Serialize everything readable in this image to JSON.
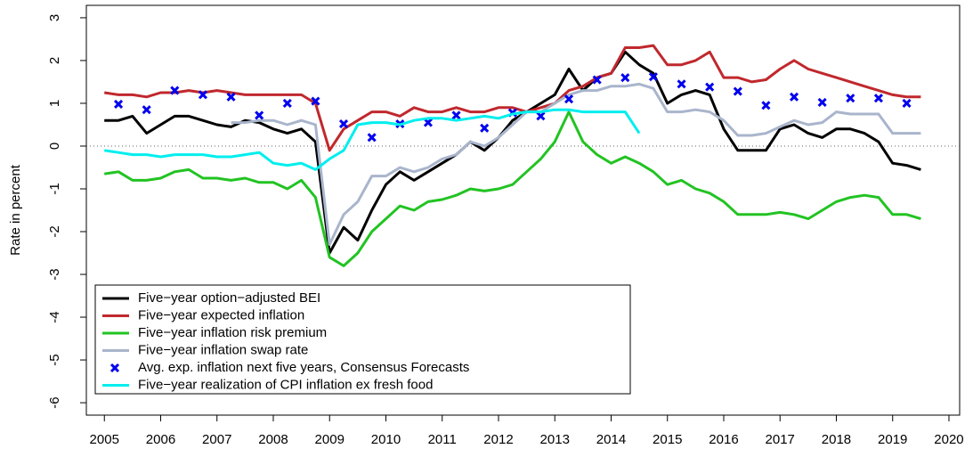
{
  "chart_data": {
    "type": "line",
    "y_label": "Rate in percent",
    "xlim": [
      2004.68,
      2020.19
    ],
    "ylim": [
      -6.29,
      3.29
    ],
    "xticks": [
      2005,
      2006,
      2007,
      2008,
      2009,
      2010,
      2011,
      2012,
      2013,
      2014,
      2015,
      2016,
      2017,
      2018,
      2019,
      2020
    ],
    "yticks": [
      -6,
      -5,
      -4,
      -3,
      -2,
      -1,
      0,
      1,
      2,
      3
    ],
    "reference_line": 0,
    "x": [
      2005,
      2005.25,
      2005.5,
      2005.75,
      2006,
      2006.25,
      2006.5,
      2006.75,
      2007,
      2007.25,
      2007.5,
      2007.75,
      2008,
      2008.25,
      2008.5,
      2008.75,
      2009,
      2009.25,
      2009.5,
      2009.75,
      2010,
      2010.25,
      2010.5,
      2010.75,
      2011,
      2011.25,
      2011.5,
      2011.75,
      2012,
      2012.25,
      2012.5,
      2012.75,
      2013,
      2013.25,
      2013.5,
      2013.75,
      2014,
      2014.25,
      2014.5,
      2014.75,
      2015,
      2015.25,
      2015.5,
      2015.75,
      2016,
      2016.25,
      2016.5,
      2016.75,
      2017,
      2017.25,
      2017.5,
      2017.75,
      2018,
      2018.25,
      2018.5,
      2018.75,
      2019,
      2019.25,
      2019.5
    ],
    "series": [
      {
        "name": "Five−year option−adjusted BEI",
        "color": "#000000",
        "values": [
          0.6,
          0.6,
          0.7,
          0.3,
          0.5,
          0.7,
          0.7,
          0.6,
          0.5,
          0.45,
          0.6,
          0.55,
          0.4,
          0.3,
          0.4,
          0.1,
          -2.5,
          -1.9,
          -2.2,
          -1.5,
          -0.9,
          -0.6,
          -0.8,
          -0.6,
          -0.4,
          -0.2,
          0.1,
          -0.1,
          0.2,
          0.6,
          0.8,
          1.0,
          1.2,
          1.8,
          1.3,
          1.6,
          1.7,
          2.2,
          1.9,
          1.7,
          1.0,
          1.2,
          1.3,
          1.2,
          0.4,
          -0.1,
          -0.1,
          -0.1,
          0.4,
          0.5,
          0.3,
          0.2,
          0.4,
          0.4,
          0.3,
          0.1,
          -0.4,
          -0.45,
          -0.55
        ]
      },
      {
        "name": "Five−year expected inflation",
        "color": "#c0282d",
        "values": [
          1.25,
          1.2,
          1.2,
          1.15,
          1.25,
          1.25,
          1.3,
          1.25,
          1.3,
          1.25,
          1.2,
          1.2,
          1.2,
          1.2,
          1.2,
          1.0,
          -0.1,
          0.4,
          0.6,
          0.8,
          0.8,
          0.7,
          0.9,
          0.8,
          0.8,
          0.9,
          0.8,
          0.8,
          0.9,
          0.9,
          0.8,
          0.9,
          1.0,
          1.3,
          1.4,
          1.6,
          1.7,
          2.3,
          2.3,
          2.35,
          1.9,
          1.9,
          2.0,
          2.2,
          1.6,
          1.6,
          1.5,
          1.55,
          1.8,
          2.0,
          1.8,
          1.7,
          1.6,
          1.5,
          1.4,
          1.3,
          1.2,
          1.15,
          1.15
        ]
      },
      {
        "name": "Five−year inflation risk premium",
        "color": "#22c322",
        "values": [
          -0.65,
          -0.6,
          -0.8,
          -0.8,
          -0.75,
          -0.6,
          -0.55,
          -0.75,
          -0.75,
          -0.8,
          -0.75,
          -0.85,
          -0.85,
          -1.0,
          -0.8,
          -1.2,
          -2.6,
          -2.8,
          -2.5,
          -2.0,
          -1.7,
          -1.4,
          -1.5,
          -1.3,
          -1.25,
          -1.15,
          -1.0,
          -1.05,
          -1.0,
          -0.9,
          -0.6,
          -0.3,
          0.1,
          0.8,
          0.1,
          -0.2,
          -0.4,
          -0.25,
          -0.4,
          -0.6,
          -0.9,
          -0.8,
          -1.0,
          -1.1,
          -1.3,
          -1.6,
          -1.6,
          -1.6,
          -1.55,
          -1.6,
          -1.7,
          -1.5,
          -1.3,
          -1.2,
          -1.15,
          -1.2,
          -1.6,
          -1.6,
          -1.7
        ]
      },
      {
        "name": "Five−year inflation swap rate",
        "color": "#a9b5cc",
        "x": [
          2007.25,
          2007.5,
          2007.75,
          2008,
          2008.25,
          2008.5,
          2008.75,
          2009,
          2009.25,
          2009.5,
          2009.75,
          2010,
          2010.25,
          2010.5,
          2010.75,
          2011,
          2011.25,
          2011.5,
          2011.75,
          2012,
          2012.25,
          2012.5,
          2012.75,
          2013,
          2013.25,
          2013.5,
          2013.75,
          2014,
          2014.25,
          2014.5,
          2014.75,
          2015,
          2015.25,
          2015.5,
          2015.75,
          2016,
          2016.25,
          2016.5,
          2016.75,
          2017,
          2017.25,
          2017.5,
          2017.75,
          2018,
          2018.25,
          2018.5,
          2018.75,
          2019,
          2019.25,
          2019.5
        ],
        "values": [
          0.55,
          0.55,
          0.6,
          0.6,
          0.5,
          0.6,
          0.5,
          -2.3,
          -1.6,
          -1.3,
          -0.7,
          -0.7,
          -0.5,
          -0.6,
          -0.5,
          -0.3,
          -0.2,
          0.1,
          0.0,
          0.2,
          0.5,
          0.8,
          0.8,
          1.0,
          1.2,
          1.3,
          1.3,
          1.4,
          1.4,
          1.45,
          1.35,
          0.8,
          0.8,
          0.85,
          0.8,
          0.6,
          0.25,
          0.25,
          0.3,
          0.45,
          0.6,
          0.5,
          0.55,
          0.8,
          0.75,
          0.75,
          0.75,
          0.3,
          0.3,
          0.3
        ]
      },
      {
        "name": "Avg. exp. inflation next five years, Consensus Forecasts",
        "color": "#0000ee",
        "marker": "x",
        "x": [
          2005.25,
          2005.75,
          2006.25,
          2006.75,
          2007.25,
          2007.75,
          2008.25,
          2008.75,
          2009.25,
          2009.75,
          2010.25,
          2010.75,
          2011.25,
          2011.75,
          2012.25,
          2012.75,
          2013.25,
          2013.75,
          2014.25,
          2014.75,
          2015.25,
          2015.75,
          2016.25,
          2016.75,
          2017.25,
          2017.75,
          2018.25,
          2018.75,
          2019.25
        ],
        "values": [
          0.98,
          0.85,
          1.3,
          1.2,
          1.15,
          0.72,
          1.0,
          1.05,
          0.52,
          0.2,
          0.52,
          0.55,
          0.72,
          0.42,
          0.78,
          0.7,
          1.1,
          1.55,
          1.6,
          1.62,
          1.45,
          1.38,
          1.28,
          0.95,
          1.15,
          1.02,
          1.12,
          1.12,
          1.0
        ]
      },
      {
        "name": "Five−year realization of CPI inflation ex fresh food",
        "color": "#00eeee",
        "x": [
          2005,
          2005.25,
          2005.5,
          2005.75,
          2006,
          2006.25,
          2006.5,
          2006.75,
          2007,
          2007.25,
          2007.5,
          2007.75,
          2008,
          2008.25,
          2008.5,
          2008.75,
          2009,
          2009.25,
          2009.5,
          2009.75,
          2010,
          2010.25,
          2010.5,
          2010.75,
          2011,
          2011.25,
          2011.5,
          2011.75,
          2012,
          2012.25,
          2012.5,
          2012.75,
          2013,
          2013.25,
          2013.5,
          2013.75,
          2014,
          2014.25,
          2014.5
        ],
        "values": [
          -0.1,
          -0.15,
          -0.2,
          -0.2,
          -0.25,
          -0.2,
          -0.2,
          -0.2,
          -0.25,
          -0.25,
          -0.2,
          -0.15,
          -0.4,
          -0.45,
          -0.4,
          -0.55,
          -0.3,
          -0.1,
          0.5,
          0.55,
          0.55,
          0.5,
          0.6,
          0.65,
          0.65,
          0.6,
          0.65,
          0.7,
          0.65,
          0.75,
          0.8,
          0.8,
          0.85,
          0.85,
          0.8,
          0.8,
          0.8,
          0.8,
          0.3
        ]
      }
    ]
  }
}
